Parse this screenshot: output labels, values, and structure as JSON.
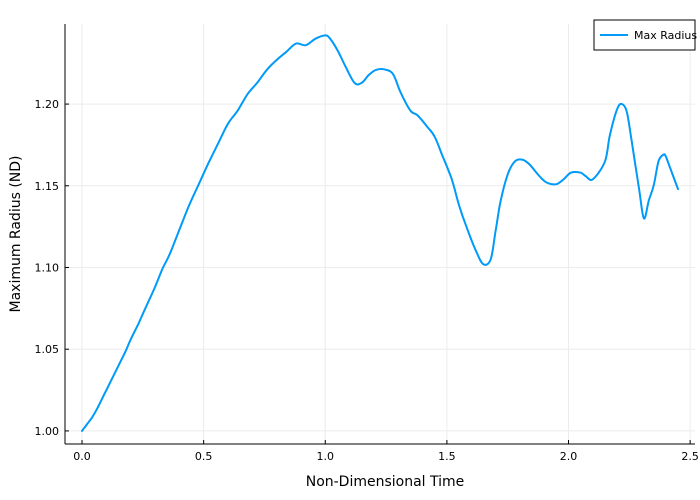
{
  "chart_data": {
    "type": "line",
    "title": "",
    "xlabel": "Non-Dimensional Time",
    "ylabel": "Maximum Radius (ND)",
    "xlim": [
      -0.07,
      2.52
    ],
    "ylim": [
      0.992,
      1.249
    ],
    "xticks": [
      0.0,
      0.5,
      1.0,
      1.5,
      2.0,
      2.5
    ],
    "xtick_labels": [
      "0.0",
      "0.5",
      "1.0",
      "1.5",
      "2.0",
      "2.5"
    ],
    "yticks": [
      1.0,
      1.05,
      1.1,
      1.15,
      1.2
    ],
    "ytick_labels": [
      "1.00",
      "1.05",
      "1.10",
      "1.15",
      "1.20"
    ],
    "grid": true,
    "legend_position": "top-right",
    "colors": {
      "series": "#009af9",
      "grid": "#ececec",
      "axis": "#000000"
    },
    "series": [
      {
        "name": "Max Radius",
        "x": [
          0.0,
          0.02,
          0.04,
          0.06,
          0.08,
          0.1,
          0.12,
          0.15,
          0.18,
          0.2,
          0.23,
          0.26,
          0.3,
          0.33,
          0.36,
          0.4,
          0.44,
          0.48,
          0.52,
          0.56,
          0.6,
          0.64,
          0.68,
          0.72,
          0.76,
          0.8,
          0.84,
          0.88,
          0.92,
          0.96,
          1.0,
          1.02,
          1.05,
          1.08,
          1.12,
          1.15,
          1.18,
          1.21,
          1.25,
          1.28,
          1.31,
          1.35,
          1.38,
          1.42,
          1.45,
          1.48,
          1.52,
          1.55,
          1.58,
          1.62,
          1.65,
          1.68,
          1.7,
          1.72,
          1.75,
          1.78,
          1.81,
          1.84,
          1.88,
          1.91,
          1.95,
          1.98,
          2.01,
          2.05,
          2.07,
          2.1,
          2.15,
          2.17,
          2.2,
          2.22,
          2.24,
          2.26,
          2.29,
          2.31,
          2.33,
          2.35,
          2.37,
          2.39,
          2.4,
          2.42,
          2.45
        ],
        "y": [
          1.0,
          1.004,
          1.008,
          1.013,
          1.019,
          1.025,
          1.031,
          1.04,
          1.049,
          1.056,
          1.065,
          1.075,
          1.088,
          1.099,
          1.108,
          1.123,
          1.138,
          1.151,
          1.164,
          1.176,
          1.188,
          1.196,
          1.206,
          1.213,
          1.221,
          1.227,
          1.232,
          1.237,
          1.236,
          1.24,
          1.242,
          1.24,
          1.233,
          1.224,
          1.213,
          1.213,
          1.218,
          1.221,
          1.221,
          1.218,
          1.207,
          1.196,
          1.193,
          1.186,
          1.18,
          1.169,
          1.154,
          1.138,
          1.125,
          1.11,
          1.102,
          1.105,
          1.122,
          1.14,
          1.157,
          1.165,
          1.166,
          1.163,
          1.156,
          1.152,
          1.151,
          1.154,
          1.158,
          1.158,
          1.156,
          1.154,
          1.165,
          1.181,
          1.197,
          1.2,
          1.195,
          1.177,
          1.148,
          1.13,
          1.141,
          1.15,
          1.165,
          1.169,
          1.168,
          1.16,
          1.148
        ]
      }
    ]
  }
}
